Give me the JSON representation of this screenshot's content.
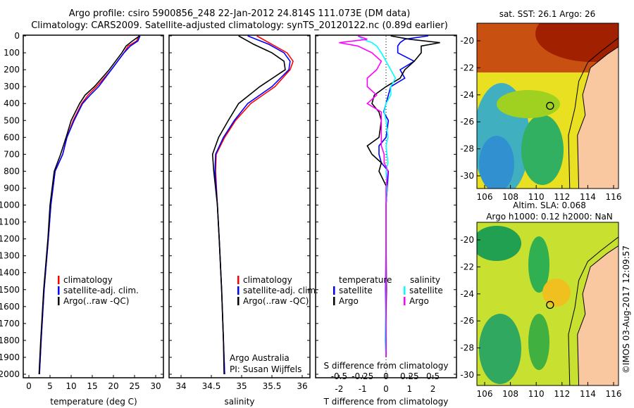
{
  "header": {
    "line1": "Argo profile: csiro 5900856_248 22-Jan-2012 24.814S 111.073E (DM data)",
    "line2": "Climatology: CARS2009. Satellite-adjusted climatology: synTS_20120122.nc (0.89d earlier)"
  },
  "colors": {
    "climatology": "#ff0000",
    "satellite": "#0000ff",
    "argo": "#000000",
    "sal_satellite": "#00ffff",
    "sal_argo": "#ff00ff",
    "land": "#fac8a0"
  },
  "chart_data": [
    {
      "type": "line",
      "xlabel": "temperature (deg C)",
      "ylabel": "",
      "xlim": [
        -1,
        31
      ],
      "ylim": [
        2000,
        0
      ],
      "xticks": [
        "0",
        "5",
        "10",
        "15",
        "20",
        "25",
        "30"
      ],
      "yticks": [
        "0",
        "100",
        "200",
        "300",
        "400",
        "500",
        "600",
        "700",
        "800",
        "900",
        "1000",
        "1100",
        "1200",
        "1300",
        "1400",
        "1500",
        "1600",
        "1700",
        "1800",
        "1900",
        "2000"
      ],
      "depth": [
        0,
        30,
        60,
        100,
        150,
        200,
        300,
        350,
        400,
        500,
        600,
        700,
        800,
        1000,
        1200,
        1500,
        1800,
        2000
      ],
      "series": [
        {
          "name": "climatology",
          "values": [
            26.0,
            25.5,
            23.5,
            22.5,
            21,
            19.5,
            16,
            14,
            12.5,
            10.5,
            9,
            8,
            6.2,
            5.2,
            4.6,
            3.6,
            2.9,
            2.5
          ]
        },
        {
          "name": "satellite-adj. clim.",
          "values": [
            26.3,
            25.8,
            24,
            22.5,
            21,
            19.5,
            16.5,
            14.5,
            12.7,
            10.7,
            9,
            8,
            6.2,
            5.2,
            4.6,
            3.6,
            2.9,
            2.5
          ]
        },
        {
          "name": "Argo(..raw -QC)",
          "values": [
            26.2,
            24.5,
            23,
            22,
            20.5,
            19,
            15.5,
            13.3,
            12,
            10,
            8.8,
            7.5,
            6,
            5,
            4.5,
            3.5,
            2.8,
            2.4
          ]
        }
      ],
      "legend": "lower-center"
    },
    {
      "type": "line",
      "xlabel": "salinity",
      "xlim": [
        33.8,
        36.0
      ],
      "ylim": [
        2000,
        0
      ],
      "xticks": [
        "34",
        "34.5",
        "35",
        "35.5",
        "36"
      ],
      "depth": [
        0,
        50,
        100,
        150,
        200,
        300,
        400,
        500,
        600,
        700,
        800,
        1000,
        1200,
        1500,
        1800,
        2000
      ],
      "series": [
        {
          "name": "climatology",
          "values": [
            35.25,
            35.5,
            35.75,
            35.85,
            35.8,
            35.55,
            35.15,
            34.9,
            34.72,
            34.58,
            34.57,
            34.6,
            34.63,
            34.67,
            34.7,
            34.72
          ]
        },
        {
          "name": "satellite-adj. clim.",
          "values": [
            35.1,
            35.45,
            35.7,
            35.8,
            35.78,
            35.5,
            35.1,
            34.88,
            34.7,
            34.57,
            34.56,
            34.6,
            34.63,
            34.67,
            34.7,
            34.72
          ]
        },
        {
          "name": "Argo(..raw -QC)",
          "values": [
            34.95,
            35.2,
            35.5,
            35.7,
            35.72,
            35.3,
            34.95,
            34.78,
            34.62,
            34.52,
            34.54,
            34.6,
            34.63,
            34.67,
            34.7,
            34.71
          ]
        }
      ],
      "annotation": [
        "Argo Australia",
        "PI: Susan Wijffels"
      ]
    },
    {
      "type": "line",
      "xlabel": "T difference from climatology",
      "x2label": "S difference from climatology",
      "xlim": [
        -3,
        3
      ],
      "x2lim": [
        -0.75,
        0.75
      ],
      "ylim": [
        2000,
        0
      ],
      "xticks": [
        "-2",
        "-1",
        "0",
        "1",
        "2"
      ],
      "x2ticks": [
        "-0.5",
        "-0.25",
        "0",
        "0.25",
        "0.5"
      ],
      "depth": [
        0,
        20,
        40,
        60,
        100,
        150,
        200,
        250,
        300,
        350,
        400,
        450,
        500,
        600,
        650,
        700,
        750,
        800,
        900,
        1000,
        1200,
        1500,
        1800,
        1900
      ],
      "series": [
        {
          "name": "temperature satellite",
          "axis": "T",
          "values": [
            1.8,
            0.8,
            0.6,
            0.5,
            0.5,
            1.2,
            0.6,
            0.8,
            0.2,
            0.1,
            0,
            -0.1,
            0.1,
            0,
            -0.3,
            -0.3,
            -0.2,
            0.1,
            0.05,
            0,
            0,
            -0.02,
            0,
            0
          ]
        },
        {
          "name": "temperature Argo",
          "axis": "T",
          "values": [
            0.2,
            1.0,
            2.3,
            1.5,
            1.5,
            1.2,
            0.8,
            0.6,
            0,
            -0.5,
            -0.6,
            -0.3,
            -0.2,
            -0.3,
            -0.8,
            -0.6,
            -0.2,
            -0.3,
            0.05,
            0,
            0,
            0.02,
            -0.02,
            0
          ]
        },
        {
          "name": "salinity satellite",
          "axis": "S",
          "values": [
            -0.3,
            -0.25,
            -0.15,
            -0.1,
            -0.05,
            0,
            0.05,
            0.1,
            0.05,
            0.05,
            0,
            -0.02,
            0,
            0.02,
            0,
            0.01,
            0.02,
            0,
            0.01,
            0,
            0,
            0,
            -0.01,
            0
          ]
        },
        {
          "name": "salinity Argo",
          "axis": "S",
          "values": [
            -0.3,
            -0.2,
            -0.5,
            -0.3,
            -0.15,
            -0.05,
            -0.1,
            -0.2,
            -0.2,
            -0.1,
            -0.2,
            -0.05,
            -0.05,
            -0.05,
            -0.05,
            -0.02,
            -0.02,
            0.02,
            0,
            0,
            0,
            0,
            0,
            0
          ]
        }
      ],
      "legend": {
        "temperature": "temperature",
        "salinity": "salinity",
        "satellite": "satellite",
        "argo": "Argo"
      }
    },
    {
      "type": "heatmap",
      "title": "sat. SST: 26.1  Argo: 26",
      "xticks": [
        "106",
        "108",
        "110",
        "112",
        "114",
        "116"
      ],
      "yticks": [
        "-20",
        "-22",
        "-24",
        "-26",
        "-28",
        "-30"
      ],
      "float_position": [
        111.073,
        -24.814
      ]
    },
    {
      "type": "heatmap",
      "title": [
        "Altim. SLA: 0.068",
        "Argo h1000: 0.12 h2000: NaN"
      ],
      "xticks": [
        "106",
        "108",
        "110",
        "112",
        "114",
        "116"
      ],
      "yticks": [
        "-20",
        "-22",
        "-24",
        "-26",
        "-28",
        "-30"
      ],
      "float_position": [
        111.073,
        -24.814
      ]
    }
  ],
  "footer": {
    "stamp": "©IMOS 03-Aug-2017 12:09:57"
  }
}
